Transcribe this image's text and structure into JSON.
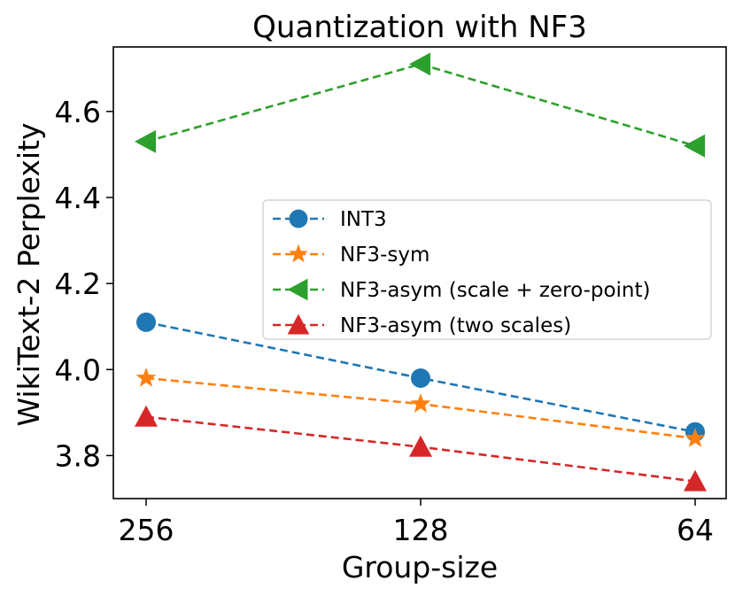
{
  "chart_data": {
    "type": "line",
    "title": "Quantization with NF3",
    "xlabel": "Group-size",
    "ylabel": "WikiText-2 Perplexity",
    "categories": [
      "256",
      "128",
      "64"
    ],
    "ylim": [
      3.7,
      4.75
    ],
    "yticks": [
      3.8,
      4.0,
      4.2,
      4.4,
      4.6
    ],
    "ytick_labels": [
      "3.8",
      "4.0",
      "4.2",
      "4.4",
      "4.6"
    ],
    "grid": false,
    "legend_position": "center-right",
    "series": [
      {
        "name": "INT3",
        "values": [
          4.11,
          3.98,
          3.855
        ],
        "color": "#1f77b4",
        "marker": "circle"
      },
      {
        "name": "NF3-sym",
        "values": [
          3.98,
          3.92,
          3.84
        ],
        "color": "#ff7f0e",
        "marker": "star"
      },
      {
        "name": "NF3-asym (scale + zero-point)",
        "values": [
          4.53,
          4.71,
          4.52
        ],
        "color": "#2ca02c",
        "marker": "triangle-left"
      },
      {
        "name": "NF3-asym (two scales)",
        "values": [
          3.89,
          3.82,
          3.74
        ],
        "color": "#d62728",
        "marker": "triangle-up"
      }
    ]
  }
}
